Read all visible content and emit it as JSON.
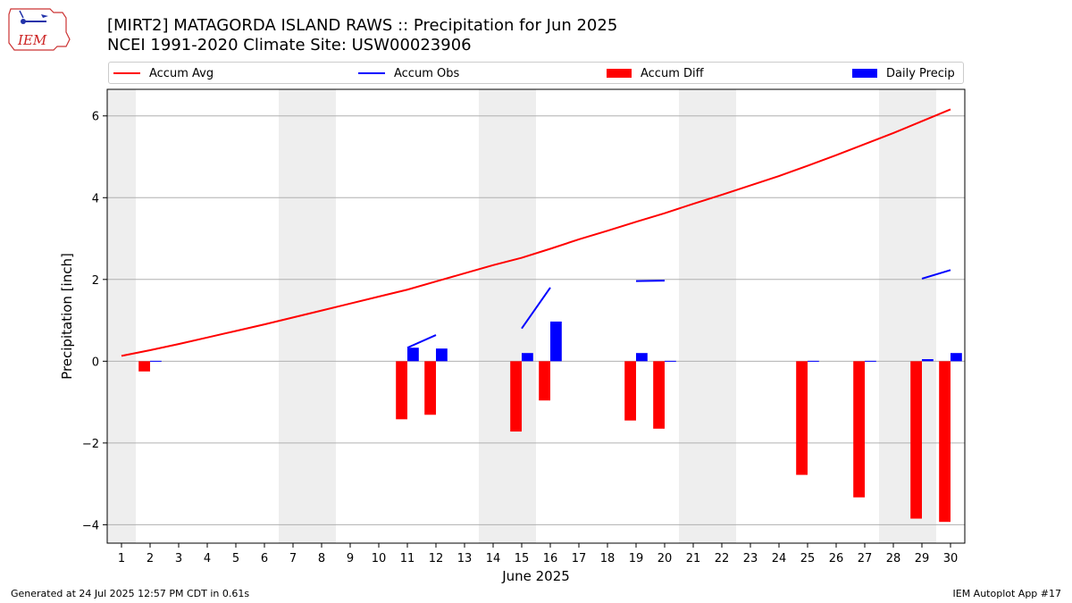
{
  "header": {
    "title_line1": "[MIRT2] MATAGORDA ISLAND RAWS :: Precipitation for Jun 2025",
    "title_line2": "NCEI 1991-2020 Climate Site: USW00023906",
    "logo_text": "IEM"
  },
  "legend": {
    "items": [
      {
        "label": "Accum Avg",
        "color": "#ff0000",
        "kind": "line"
      },
      {
        "label": "Accum Obs",
        "color": "#0000ff",
        "kind": "line"
      },
      {
        "label": "Accum Diff",
        "color": "#ff0000",
        "kind": "bar"
      },
      {
        "label": "Daily Precip",
        "color": "#0000ff",
        "kind": "bar"
      }
    ]
  },
  "footer": {
    "left": "Generated at 24 Jul 2025 12:57 PM CDT in 0.61s",
    "right": "IEM Autoplot App #17"
  },
  "chart_data": {
    "type": "bar",
    "xlabel": "June 2025",
    "ylabel": "Precipitation [inch]",
    "x": [
      1,
      2,
      3,
      4,
      5,
      6,
      7,
      8,
      9,
      10,
      11,
      12,
      13,
      14,
      15,
      16,
      17,
      18,
      19,
      20,
      21,
      22,
      23,
      24,
      25,
      26,
      27,
      28,
      29,
      30
    ],
    "ylim": [
      -4.45,
      6.65
    ],
    "yticks": [
      -4,
      -2,
      0,
      2,
      4,
      6
    ],
    "ytick_labels": [
      "−4",
      "−2",
      "0",
      "2",
      "4",
      "6"
    ],
    "grid": true,
    "weekend_shading": [
      [
        0.5,
        1.5
      ],
      [
        6.5,
        8.5
      ],
      [
        13.5,
        15.5
      ],
      [
        20.5,
        22.5
      ],
      [
        27.5,
        29.5
      ]
    ],
    "series": [
      {
        "name": "Accum Avg",
        "type": "line",
        "color": "#ff0000",
        "x": [
          1,
          2,
          3,
          4,
          5,
          6,
          7,
          8,
          9,
          10,
          11,
          12,
          13,
          14,
          15,
          16,
          17,
          18,
          19,
          20,
          21,
          22,
          23,
          24,
          25,
          26,
          27,
          28,
          29,
          30
        ],
        "values": [
          0.13,
          0.27,
          0.42,
          0.58,
          0.74,
          0.9,
          1.07,
          1.24,
          1.41,
          1.58,
          1.75,
          1.95,
          2.15,
          2.35,
          2.53,
          2.75,
          2.98,
          3.19,
          3.41,
          3.62,
          3.85,
          4.07,
          4.3,
          4.53,
          4.78,
          5.04,
          5.31,
          5.58,
          5.87,
          6.16
        ]
      },
      {
        "name": "Accum Obs",
        "type": "line",
        "color": "#0000ff",
        "segments": [
          [
            [
              11,
              0.33
            ],
            [
              12,
              0.64
            ]
          ],
          [
            [
              15,
              0.8
            ],
            [
              16,
              1.8
            ]
          ],
          [
            [
              19,
              1.96
            ],
            [
              20,
              1.97
            ]
          ],
          [
            [
              29,
              2.02
            ],
            [
              30,
              2.23
            ]
          ]
        ]
      },
      {
        "name": "Accum Diff",
        "type": "bar",
        "color": "#ff0000",
        "x": [
          2,
          11,
          12,
          15,
          16,
          19,
          20,
          25,
          27,
          29,
          30
        ],
        "values": [
          -0.25,
          -1.42,
          -1.31,
          -1.72,
          -0.96,
          -1.45,
          -1.65,
          -2.78,
          -3.33,
          -3.85,
          -3.93
        ]
      },
      {
        "name": "Daily Precip",
        "type": "bar",
        "color": "#0000ff",
        "x": [
          2,
          11,
          12,
          15,
          16,
          19,
          20,
          25,
          27,
          29,
          30
        ],
        "values": [
          0.01,
          0.33,
          0.31,
          0.2,
          0.97,
          0.2,
          0.01,
          0.01,
          0.01,
          0.05,
          0.2
        ]
      }
    ]
  }
}
